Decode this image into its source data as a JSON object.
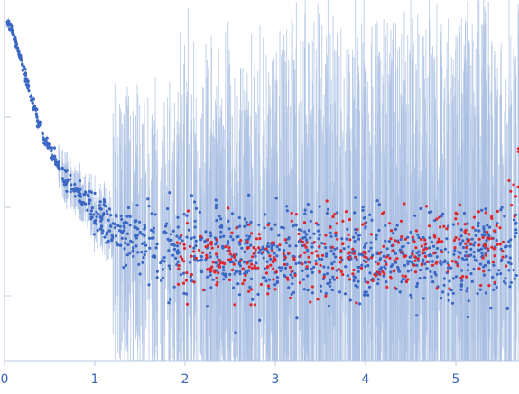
{
  "chart_data": {
    "type": "scatter",
    "title": "",
    "xlabel": "",
    "ylabel": "",
    "xlim": [
      0,
      5.7
    ],
    "y_scale": "log",
    "ylim": [
      0.00012,
      0.1
    ],
    "x_ticks": [
      "0",
      "1",
      "2",
      "3",
      "4",
      "5"
    ],
    "grid": false,
    "legend": "none",
    "colors": {
      "included_points": "#3a66c4",
      "excluded_points": "#e0262b",
      "error_bars": "#a9bfe2",
      "axes": "#b8c7e3",
      "tick_labels": "#3b67b8"
    },
    "series": [
      {
        "role": "included-points",
        "color": "#3a66c4",
        "x": [
          0.05,
          0.1,
          0.15,
          0.2,
          0.25,
          0.3,
          0.35,
          0.4,
          0.5,
          0.6,
          0.7,
          0.8,
          0.9,
          1.0,
          1.1,
          1.2,
          1.4,
          1.6,
          1.8,
          2.0,
          2.3,
          2.6,
          3.0,
          3.5,
          4.0,
          4.5,
          5.0,
          5.5
        ],
        "y": [
          0.065,
          0.052,
          0.04,
          0.03,
          0.022,
          0.016,
          0.012,
          0.009,
          0.0062,
          0.0045,
          0.0035,
          0.0028,
          0.0022,
          0.0018,
          0.0016,
          0.0014,
          0.0012,
          0.0011,
          0.001,
          0.00095,
          0.0009,
          0.00088,
          0.00087,
          0.00086,
          0.00085,
          0.00085,
          0.00085,
          0.00086
        ]
      },
      {
        "role": "excluded-points",
        "color": "#e0262b",
        "x": [
          2.0,
          2.5,
          3.0,
          3.5,
          4.0,
          4.5,
          5.0,
          5.5,
          5.7
        ],
        "y": [
          0.0008,
          0.0008,
          0.00085,
          0.0009,
          0.0009,
          0.0009,
          0.001,
          0.0011,
          0.0035
        ]
      }
    ]
  }
}
